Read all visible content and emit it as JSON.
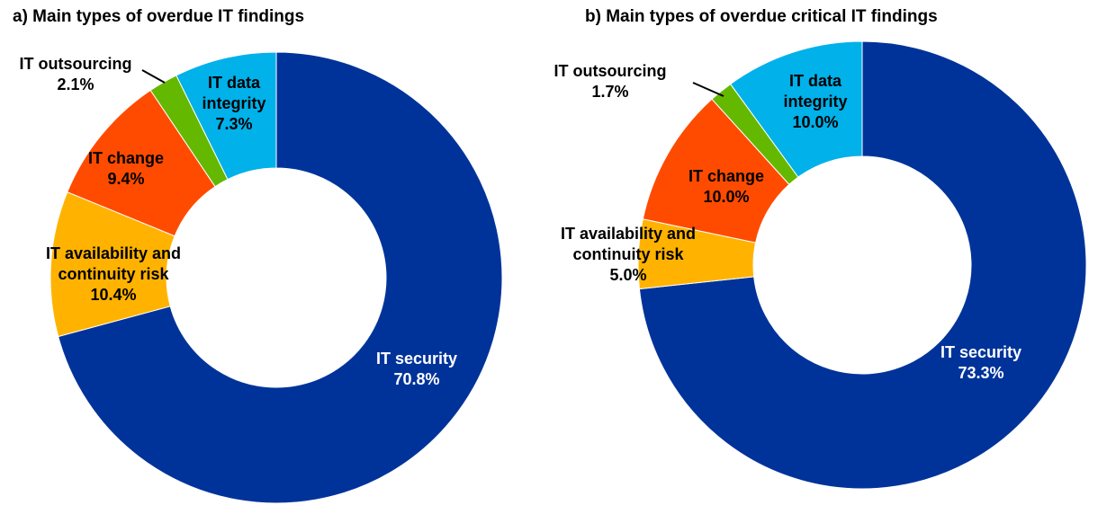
{
  "chart_data": [
    {
      "type": "pie",
      "title": "a) Main types of overdue IT findings",
      "categories": [
        "IT security",
        "IT availability and continuity risk",
        "IT change",
        "IT outsourcing",
        "IT data integrity"
      ],
      "values": [
        70.8,
        10.4,
        9.4,
        2.1,
        7.3
      ],
      "value_labels": [
        "70.8%",
        "10.4%",
        "9.4%",
        "2.1%",
        "7.3%"
      ],
      "colors": [
        "#00339A",
        "#FFB300",
        "#FF4B00",
        "#65B800",
        "#00B1EA"
      ],
      "legend": "none"
    },
    {
      "type": "pie",
      "title": "b) Main types of overdue critical IT findings",
      "categories": [
        "IT security",
        "IT availability and continuity risk",
        "IT change",
        "IT outsourcing",
        "IT data integrity"
      ],
      "values": [
        73.3,
        5.0,
        10.0,
        1.7,
        10.0
      ],
      "value_labels": [
        "73.3%",
        "5.0%",
        "10.0%",
        "1.7%",
        "10.0%"
      ],
      "colors": [
        "#00339A",
        "#FFB300",
        "#FF4B00",
        "#65B800",
        "#00B1EA"
      ],
      "legend": "none"
    }
  ]
}
